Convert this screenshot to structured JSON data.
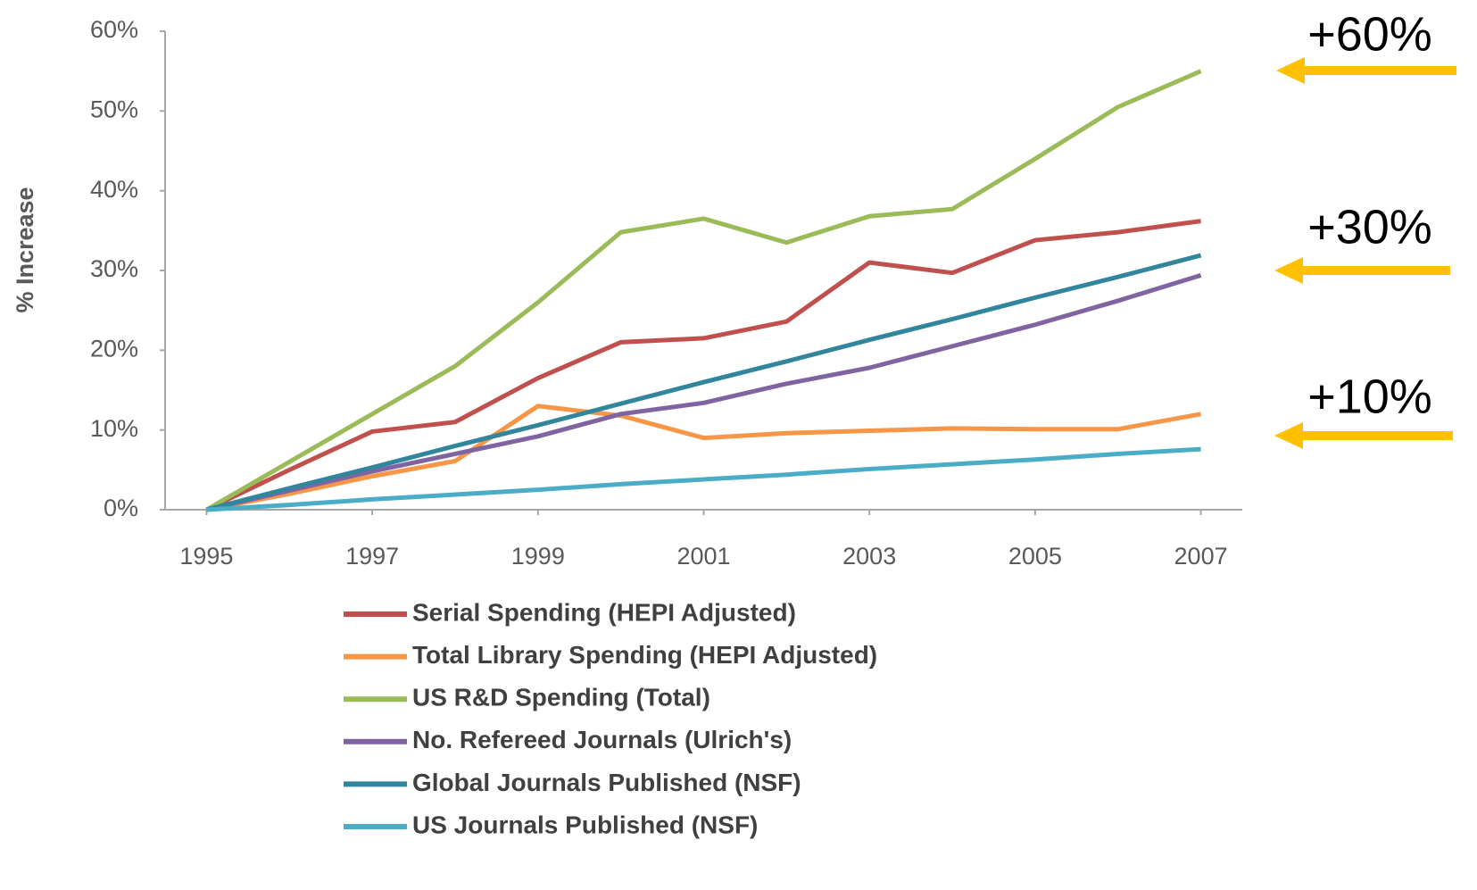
{
  "chart_data": {
    "type": "line",
    "y_label": "% Increase",
    "x": [
      1995,
      1996,
      1997,
      1998,
      1999,
      2000,
      2001,
      2002,
      2003,
      2004,
      2005,
      2006,
      2007
    ],
    "xlim": [
      1994.5,
      2007.5
    ],
    "xticks": [
      1995,
      1997,
      1999,
      2001,
      2003,
      2005,
      2007
    ],
    "ylim": [
      0,
      60
    ],
    "yticks": [
      {
        "value": 0,
        "label": "0%"
      },
      {
        "value": 10,
        "label": "10%"
      },
      {
        "value": 20,
        "label": "20%"
      },
      {
        "value": 30,
        "label": "30%"
      },
      {
        "value": 40,
        "label": "40%"
      },
      {
        "value": 50,
        "label": "50%"
      },
      {
        "value": 60,
        "label": "60%"
      }
    ],
    "legend": "bottom",
    "series": [
      {
        "name": "Serial Spending (HEPI Adjusted)",
        "color": "#c0504d",
        "values": [
          0,
          5,
          9.8,
          11,
          16.5,
          21,
          21.5,
          23.6,
          31,
          29.7,
          33.8,
          34.8,
          36.2
        ]
      },
      {
        "name": "Total Library Spending (HEPI Adjusted)",
        "color": "#f79646",
        "values": [
          0,
          2,
          4.2,
          6.1,
          13,
          11.8,
          9,
          9.6,
          9.9,
          10.2,
          10.1,
          10.1,
          12
        ]
      },
      {
        "name": "US R&D Spending (Total)",
        "color": "#9bbb59",
        "values": [
          0,
          6,
          12,
          18,
          26,
          34.8,
          36.5,
          33.5,
          36.8,
          37.7,
          44,
          50.5,
          55
        ]
      },
      {
        "name": "No. Refereed Journals (Ulrich's)",
        "color": "#8064a2",
        "values": [
          0,
          2.4,
          4.8,
          7,
          9.2,
          12,
          13.4,
          15.8,
          17.8,
          20.5,
          23.2,
          26.2,
          29.4
        ]
      },
      {
        "name": "Global Journals Published (NSF)",
        "color": "#31859c",
        "values": [
          0,
          2.7,
          5.3,
          8,
          10.6,
          13.3,
          16,
          18.6,
          21.3,
          23.9,
          26.6,
          29.2,
          31.9
        ]
      },
      {
        "name": "US Journals Published (NSF)",
        "color": "#4bacc6",
        "values": [
          0,
          0.6,
          1.3,
          1.9,
          2.5,
          3.2,
          3.8,
          4.4,
          5.1,
          5.7,
          6.3,
          7,
          7.6
        ]
      }
    ],
    "annotations": [
      "+60%",
      "+30%",
      "+10%"
    ]
  }
}
